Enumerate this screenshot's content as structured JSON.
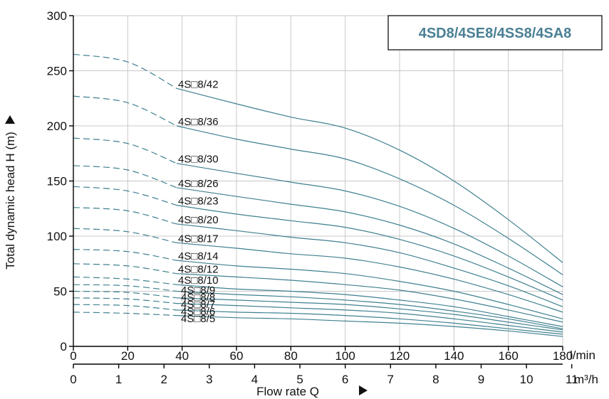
{
  "chart_data": {
    "type": "line",
    "title": "4SD8/4SE8/4SS8/4SA8",
    "ylabel": "Total dynamic head H (m)",
    "xlabel": "Flow rate Q",
    "x_unit": "l/min",
    "x2_unit": "m³/h",
    "xlim": [
      0,
      180
    ],
    "ylim": [
      0,
      300
    ],
    "x_ticks": [
      "0",
      "20",
      "40",
      "60",
      "80",
      "100",
      "120",
      "140",
      "160",
      "180"
    ],
    "x2_ticks": [
      "0",
      "1",
      "2",
      "3",
      "4",
      "5",
      "6",
      "7",
      "8",
      "9",
      "10",
      "11"
    ],
    "y_ticks": [
      "0",
      "50",
      "100",
      "150",
      "200",
      "250",
      "300"
    ],
    "grid": true,
    "dashed_until_x": 38,
    "x": [
      0,
      20,
      38,
      60,
      80,
      100,
      120,
      140,
      160,
      180
    ],
    "series": [
      {
        "name": "4S□8/42",
        "values": [
          265,
          258,
          234,
          220,
          208,
          198,
          178,
          150,
          115,
          76
        ]
      },
      {
        "name": "4S□8/36",
        "values": [
          227,
          221,
          200,
          188,
          179,
          170,
          152,
          128,
          98,
          65
        ]
      },
      {
        "name": "4S□8/30",
        "values": [
          189,
          184,
          166,
          157,
          149,
          141,
          127,
          107,
          82,
          54
        ]
      },
      {
        "name": "4S□8/26",
        "values": [
          164,
          160,
          144,
          136,
          129,
          122,
          110,
          93,
          71,
          47
        ]
      },
      {
        "name": "4S□8/23",
        "values": [
          145,
          141,
          128,
          120,
          114,
          108,
          97,
          82,
          63,
          42
        ]
      },
      {
        "name": "4S□8/20",
        "values": [
          126,
          123,
          111,
          105,
          99,
          94,
          85,
          71,
          55,
          36
        ]
      },
      {
        "name": "4S□8/17",
        "values": [
          107,
          104,
          94,
          89,
          84,
          80,
          72,
          61,
          47,
          31
        ]
      },
      {
        "name": "4S□8/14",
        "values": [
          88,
          86,
          78,
          73,
          70,
          66,
          59,
          50,
          38,
          25
        ]
      },
      {
        "name": "4S□8/12",
        "values": [
          75,
          73,
          66,
          63,
          60,
          56,
          51,
          43,
          33,
          22
        ]
      },
      {
        "name": "4S□8/10",
        "values": [
          63,
          61,
          56,
          52,
          50,
          47,
          42,
          36,
          27,
          18
        ]
      },
      {
        "name": "4S□8/9",
        "values": [
          56,
          55,
          50,
          47,
          45,
          42,
          38,
          32,
          25,
          16
        ]
      },
      {
        "name": "4S□8/8",
        "values": [
          50,
          49,
          44,
          42,
          40,
          38,
          34,
          29,
          22,
          15
        ]
      },
      {
        "name": "4S□8/7",
        "values": [
          44,
          43,
          39,
          37,
          35,
          33,
          30,
          25,
          19,
          13
        ]
      },
      {
        "name": "4S□8/6",
        "values": [
          38,
          37,
          33,
          31,
          30,
          28,
          25,
          21,
          16,
          11
        ]
      },
      {
        "name": "4S□8/5",
        "values": [
          31,
          30,
          28,
          26,
          25,
          23,
          21,
          18,
          14,
          9
        ]
      }
    ],
    "colors": {
      "curve": "#3f8090",
      "grid": "#c8c8c8",
      "title": "#4a7f94",
      "axis": "#000000"
    }
  }
}
